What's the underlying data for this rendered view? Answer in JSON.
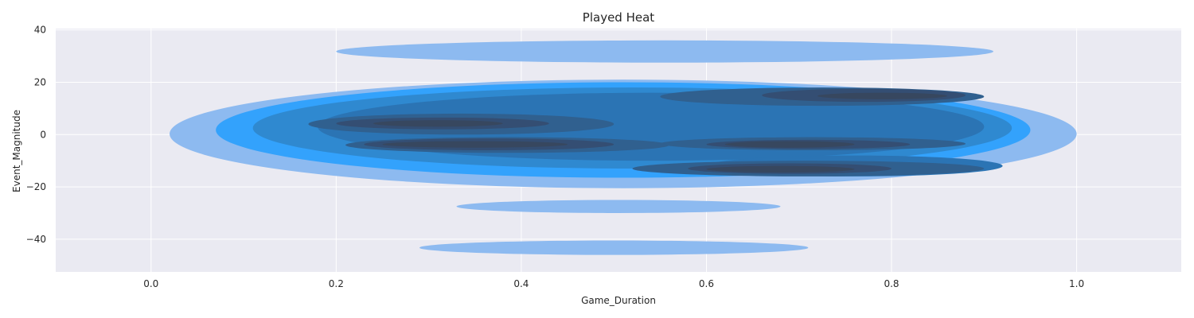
{
  "chart_data": {
    "type": "kde-contour",
    "title": "Played Heat",
    "xlabel": "Game_Duration",
    "ylabel": "Event_Magnitude",
    "xlim": [
      -0.103,
      1.113
    ],
    "ylim": [
      -52.5,
      40.5
    ],
    "xticks": [
      0.0,
      0.2,
      0.4,
      0.6,
      0.8,
      1.0
    ],
    "xtick_labels": [
      "0.0",
      "0.2",
      "0.4",
      "0.6",
      "0.8",
      "1.0"
    ],
    "yticks": [
      -40,
      -20,
      0,
      20,
      40
    ],
    "ytick_labels": [
      "−40",
      "−20",
      "0",
      "20",
      "40"
    ],
    "grid": true,
    "background": "#EAEAF2",
    "level_colors": [
      "#8DBAF0",
      "#33A2FC",
      "#2F89D0",
      "#2B74B4",
      "#30608F",
      "#344E73",
      "#37475F"
    ],
    "levels": [
      {
        "level": 1,
        "regions": [
          {
            "x": [
              0.02,
              1.0
            ],
            "y": [
              -20.5,
              21
            ]
          },
          {
            "x": [
              0.2,
              0.91
            ],
            "y": [
              27.5,
              36
            ]
          },
          {
            "x": [
              0.33,
              0.68
            ],
            "y": [
              -30,
              -25
            ]
          },
          {
            "x": [
              0.29,
              0.71
            ],
            "y": [
              -46,
              -40.5
            ]
          }
        ]
      },
      {
        "level": 2,
        "regions": [
          {
            "x": [
              0.07,
              0.95
            ],
            "y": [
              -16.5,
              20
            ]
          }
        ]
      },
      {
        "level": 3,
        "regions": [
          {
            "x": [
              0.11,
              0.93
            ],
            "y": [
              -13,
              18
            ]
          }
        ]
      },
      {
        "level": 4,
        "regions": [
          {
            "x": [
              0.18,
              0.9
            ],
            "y": [
              -10,
              16
            ]
          },
          {
            "x": [
              0.6,
              0.92
            ],
            "y": [
              -16,
              -8
            ]
          }
        ]
      },
      {
        "level": 5,
        "regions": [
          {
            "x": [
              0.17,
              0.5
            ],
            "y": [
              0,
              8
            ]
          },
          {
            "x": [
              0.21,
              0.56
            ],
            "y": [
              -7,
              -1
            ]
          },
          {
            "x": [
              0.55,
              0.9
            ],
            "y": [
              11,
              18
            ]
          },
          {
            "x": [
              0.55,
              0.88
            ],
            "y": [
              -6,
              -1
            ]
          },
          {
            "x": [
              0.52,
              0.9
            ],
            "y": [
              -16,
              -10
            ]
          }
        ]
      },
      {
        "level": 6,
        "regions": [
          {
            "x": [
              0.2,
              0.43
            ],
            "y": [
              2,
              6.5
            ]
          },
          {
            "x": [
              0.23,
              0.5
            ],
            "y": [
              -6,
              -1.5
            ]
          },
          {
            "x": [
              0.66,
              0.88
            ],
            "y": [
              12.5,
              17.5
            ]
          },
          {
            "x": [
              0.6,
              0.82
            ],
            "y": [
              -5.5,
              -2
            ]
          },
          {
            "x": [
              0.58,
              0.8
            ],
            "y": [
              -15,
              -11
            ]
          }
        ]
      },
      {
        "level": 7,
        "regions": [
          {
            "x": [
              0.24,
              0.38
            ],
            "y": [
              3,
              5.5
            ]
          },
          {
            "x": [
              0.25,
              0.45
            ],
            "y": [
              -5,
              -2.5
            ]
          },
          {
            "x": [
              0.72,
              0.86
            ],
            "y": [
              13.5,
              16
            ]
          },
          {
            "x": [
              0.62,
              0.76
            ],
            "y": [
              -5,
              -2.5
            ]
          },
          {
            "x": [
              0.6,
              0.76
            ],
            "y": [
              -14.5,
              -12
            ]
          }
        ]
      }
    ]
  }
}
